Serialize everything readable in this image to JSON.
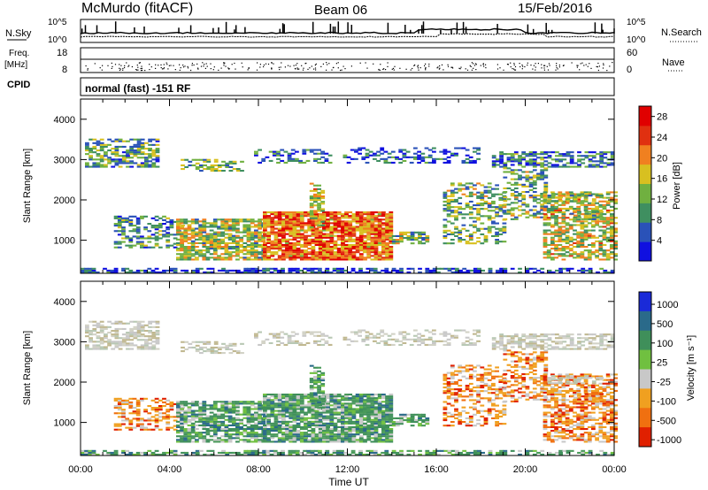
{
  "header": {
    "station": "McMurdo (fitACF)",
    "beam": "Beam 06",
    "date": "15/Feb/2016"
  },
  "panels": {
    "noise": {
      "left_label": "N.Sky",
      "right_label": "N.Search",
      "ticks_left": [
        "10^5",
        "10^0"
      ],
      "ticks_right": [
        "10^5",
        "10^0"
      ]
    },
    "freq": {
      "left_label_1": "Freq.",
      "left_label_2": "[MHz]",
      "right_label": "Nave",
      "ticks_left": [
        "18",
        "8"
      ],
      "ticks_right": [
        "60",
        "0"
      ]
    },
    "cpid": {
      "label": "CPID",
      "text": "normal (fast) -151 RF"
    }
  },
  "chart_data": [
    {
      "type": "heatmap",
      "ylabel": "Slant Range [km]",
      "xlabel": "",
      "x_ticks": [
        "00:00",
        "04:00",
        "08:00",
        "12:00",
        "16:00",
        "20:00",
        "00:00"
      ],
      "y_ticks": [
        1000,
        2000,
        3000,
        4000
      ],
      "ylim": [
        180,
        4500
      ],
      "colorbar_label": "Power [dB]",
      "colorbar_ticks": [
        4,
        8,
        12,
        16,
        20,
        24,
        28
      ],
      "colorbar_range": [
        0,
        30
      ],
      "colors": [
        "#1010e0",
        "#2a52b8",
        "#3f8f60",
        "#70b040",
        "#d8c020",
        "#f08020",
        "#e03010",
        "#e00000"
      ]
    },
    {
      "type": "heatmap",
      "ylabel": "Slant Range [km]",
      "xlabel": "Time UT",
      "x_ticks": [
        "00:00",
        "04:00",
        "08:00",
        "12:00",
        "16:00",
        "20:00",
        "00:00"
      ],
      "y_ticks": [
        1000,
        2000,
        3000,
        4000
      ],
      "ylim": [
        180,
        4500
      ],
      "colorbar_label": "Velocity [m s⁻¹]",
      "colorbar_ticks": [
        "1000",
        "500",
        "100",
        "25",
        "-25",
        "-100",
        "-500",
        "-1000"
      ],
      "colors": [
        "#1a2ad8",
        "#2a6a8a",
        "#3f8f5a",
        "#70c040",
        "#c8c8c8",
        "#f0a020",
        "#f07010",
        "#e02000"
      ]
    }
  ]
}
